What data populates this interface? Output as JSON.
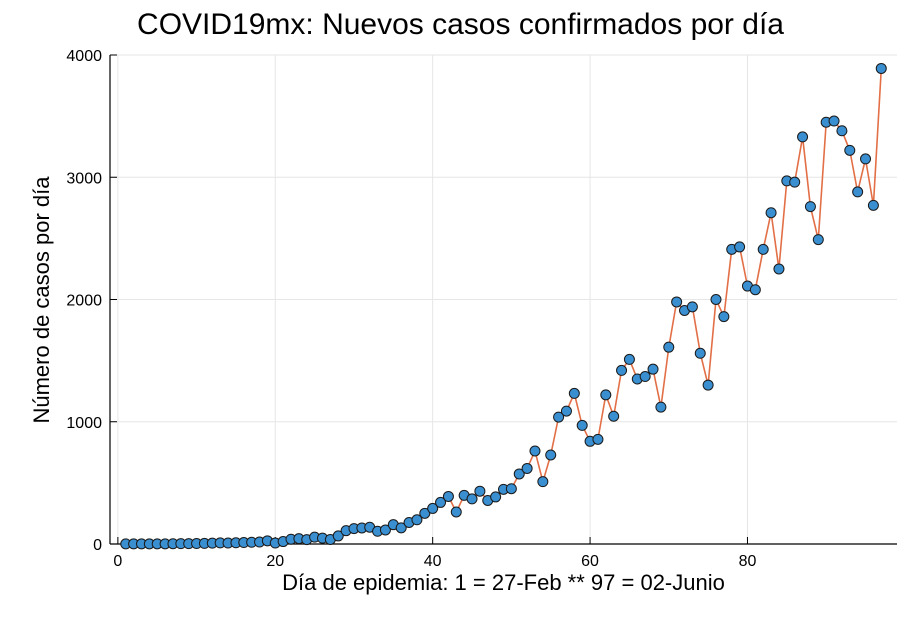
{
  "chart_data": {
    "type": "line",
    "title": "COVID19mx: Nuevos casos confirmados por día",
    "xlabel": "Día de epidemia: 1 = 27-Feb ** 97 = 02-Junio",
    "ylabel": "Número de casos por día",
    "xlim": [
      -1,
      99
    ],
    "ylim": [
      0,
      4000
    ],
    "xticks": [
      0,
      20,
      40,
      60,
      80
    ],
    "yticks": [
      0,
      1000,
      2000,
      3000,
      4000
    ],
    "grid": true,
    "legend": "none",
    "colors": {
      "line": "#e26f46",
      "marker": "#3a8fd1",
      "marker_edge": "#1a1a1a",
      "grid": "#e6e6e6",
      "axis": "#000000"
    },
    "series": [
      {
        "x": [
          1,
          2,
          3,
          4,
          5,
          6,
          7,
          8,
          9,
          10,
          11,
          12,
          13,
          14,
          15,
          16,
          17,
          18,
          19,
          20,
          21,
          22,
          23,
          24,
          25,
          26,
          27,
          28,
          29,
          30,
          31,
          32,
          33,
          34,
          35,
          36,
          37,
          38,
          39,
          40,
          41,
          42,
          43,
          44,
          45,
          46,
          47,
          48,
          49,
          50,
          51,
          52,
          53,
          54,
          55,
          56,
          57,
          58,
          59,
          60,
          61,
          62,
          63,
          64,
          65,
          66,
          67,
          68,
          69,
          70,
          71,
          72,
          73,
          74,
          75,
          76,
          77,
          78,
          79,
          80,
          81,
          82,
          83,
          84,
          85,
          86,
          87,
          88,
          89,
          90,
          91,
          92,
          93,
          94,
          95,
          96,
          97
        ],
        "y": [
          1,
          1,
          1,
          1,
          1,
          1,
          2,
          3,
          3,
          4,
          5,
          7,
          9,
          8,
          10,
          12,
          14,
          16,
          26,
          8,
          20,
          39,
          44,
          36,
          56,
          48,
          37,
          66,
          109,
          126,
          131,
          137,
          104,
          115,
          158,
          132,
          176,
          198,
          251,
          291,
          340,
          389,
          262,
          398,
          369,
          432,
          356,
          385,
          447,
          452,
          573,
          618,
          761,
          510,
          728,
          1038,
          1087,
          1232,
          970,
          840,
          856,
          1220,
          1045,
          1420,
          1510,
          1350,
          1370,
          1430,
          1120,
          1610,
          1980,
          1910,
          1940,
          1560,
          1300,
          2000,
          1860,
          2410,
          2430,
          2110,
          2080,
          2410,
          2710,
          2250,
          2970,
          2960,
          3330,
          2760,
          2490,
          3450,
          3460,
          3380,
          3220,
          2880,
          3150,
          2770,
          3890
        ]
      }
    ]
  }
}
